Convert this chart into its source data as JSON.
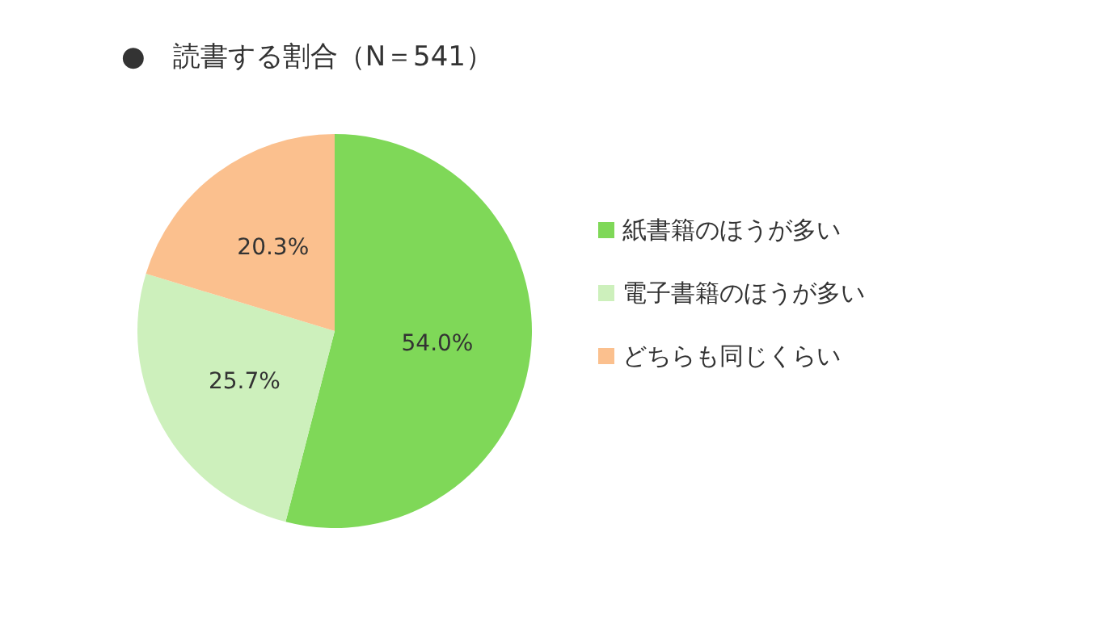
{
  "chart_data": {
    "type": "pie",
    "title": "●　読書する割合（N＝541）",
    "categories": [
      "紙書籍のほうが多い",
      "電子書籍のほうが多い",
      "どちらも同じくらい"
    ],
    "values": [
      54.0,
      25.7,
      20.3
    ],
    "colors": [
      "#7fd858",
      "#cdf0bc",
      "#fbc08e"
    ],
    "value_labels": [
      "54.0%",
      "25.7%",
      "20.3%"
    ],
    "legend": "right"
  }
}
